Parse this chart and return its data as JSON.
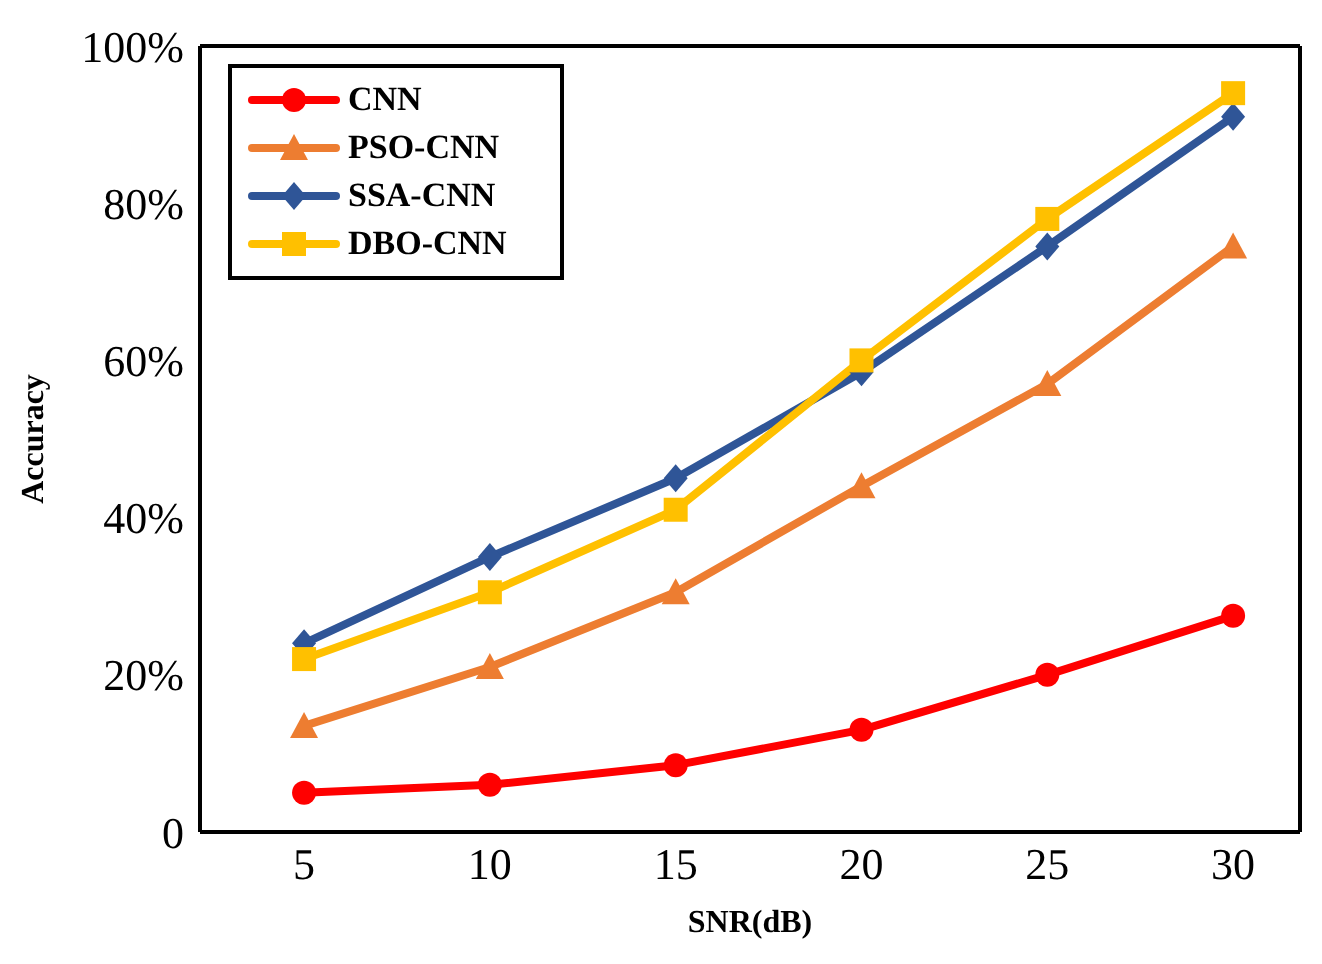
{
  "chart_data": {
    "type": "line",
    "xlabel": "SNR(dB)",
    "ylabel": "Accuracy",
    "x": [
      5,
      10,
      15,
      20,
      25,
      30
    ],
    "series": [
      {
        "name": "CNN",
        "color": "#ff0000",
        "marker": "circle",
        "values": [
          5,
          6,
          8.5,
          13,
          20,
          27.5
        ]
      },
      {
        "name": "PSO-CNN",
        "color": "#ed7d31",
        "marker": "triangle",
        "values": [
          13.5,
          21,
          30.5,
          44,
          57,
          74.5
        ]
      },
      {
        "name": "SSA-CNN",
        "color": "#2f5597",
        "marker": "diamond",
        "values": [
          24,
          35,
          45,
          58.5,
          74.5,
          91
        ]
      },
      {
        "name": "DBO-CNN",
        "color": "#ffc000",
        "marker": "square",
        "values": [
          22,
          30.5,
          41,
          60,
          78,
          94
        ]
      }
    ],
    "xlim": [
      2.2,
      31.8
    ],
    "xticks": [
      5,
      10,
      15,
      20,
      25,
      30
    ],
    "ylim": [
      0,
      100
    ],
    "yticks": [
      {
        "value": 0,
        "label": "0"
      },
      {
        "value": 20,
        "label": "20%"
      },
      {
        "value": 40,
        "label": "40%"
      },
      {
        "value": 60,
        "label": "60%"
      },
      {
        "value": 80,
        "label": "80%"
      },
      {
        "value": 100,
        "label": "100%"
      }
    ],
    "grid": false,
    "legend": "top left",
    "line_style": "solid"
  }
}
